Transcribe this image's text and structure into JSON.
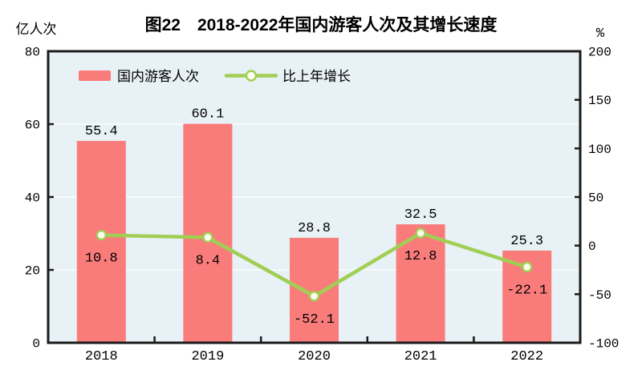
{
  "chart_data": {
    "type": "bar",
    "subtype": "bar-line-combo",
    "title": "图22　2018-2022年国内游客人次及其增长速度",
    "categories": [
      "2018",
      "2019",
      "2020",
      "2021",
      "2022"
    ],
    "series": [
      {
        "name": "国内游客人次",
        "type": "bar",
        "axis": "left",
        "values": [
          55.4,
          60.1,
          28.8,
          32.5,
          25.3
        ],
        "labels": [
          "55.4",
          "60.1",
          "28.8",
          "32.5",
          "25.3"
        ],
        "color": "#F97C7B"
      },
      {
        "name": "比上年增长",
        "type": "line",
        "axis": "right",
        "values": [
          10.8,
          8.4,
          -52.1,
          12.8,
          -22.1
        ],
        "labels": [
          "10.8",
          "8.4",
          "-52.1",
          "12.8",
          "-22.1"
        ],
        "color": "#A1CE55",
        "marker_fill": "#FBFDEE"
      }
    ],
    "left_axis": {
      "label": "亿人次",
      "min": 0,
      "max": 80,
      "ticks": [
        0,
        20,
        40,
        60,
        80
      ],
      "tick_marks": [
        20,
        40,
        60
      ],
      "grid": [
        20,
        40,
        60
      ]
    },
    "right_axis": {
      "label": "%",
      "min": -100,
      "max": 200,
      "ticks": [
        -100,
        -50,
        0,
        50,
        100,
        150,
        200
      ],
      "tick_marks": [
        -50,
        0,
        50,
        100,
        150
      ]
    },
    "legend_position": "top-left-inside",
    "grid_on": true,
    "colors": {
      "plot_background": "#E8F1F5",
      "page_background": "#FFFFFF",
      "gridline": "#FFFFFF",
      "axis_frame": "#1A1A1A",
      "text": "#000000"
    }
  }
}
